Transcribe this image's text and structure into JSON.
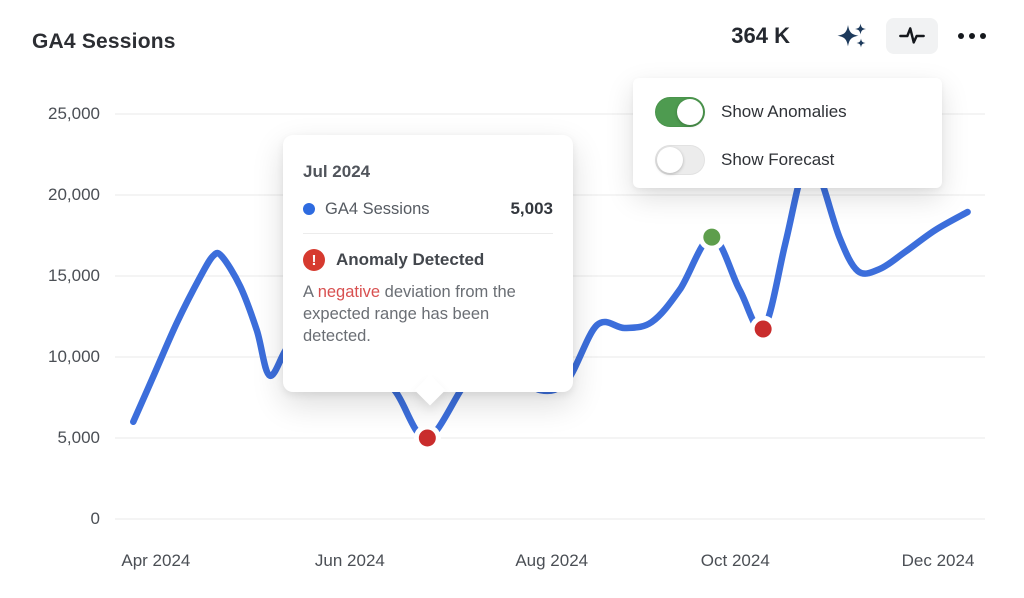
{
  "header": {
    "title": "GA4 Sessions",
    "total_value": "364 K",
    "icons": [
      "sparkles-icon",
      "pulse-icon",
      "ellipsis-icon"
    ],
    "active_tool": "pulse-icon",
    "sparkles_color": "#1d3a5c",
    "icon_color": "#15181d"
  },
  "overlay_menu": {
    "items": [
      {
        "label": "Show Anomalies",
        "enabled": true
      },
      {
        "label": "Show Forecast",
        "enabled": false
      }
    ],
    "toggle_on_color": "#4e9b50",
    "toggle_off_color": "#ececec"
  },
  "tooltip": {
    "title": "Jul 2024",
    "series_label": "GA4 Sessions",
    "value": "5,003",
    "marker_color": "#2e6be0",
    "alert_glyph": "!",
    "alert_icon_color": "#d63a2f",
    "alert_title": "Anomaly Detected",
    "description_prefix": "A ",
    "description_highlight": "negative",
    "description_suffix": " deviation from the expected range has been detected.",
    "highlight_color": "#d85050"
  },
  "chart_data": {
    "type": "line",
    "title": "GA4 Sessions",
    "grid": true,
    "legend_position": "none",
    "ylim": [
      0,
      25000
    ],
    "y_ticks": [
      0,
      5000,
      10000,
      15000,
      20000,
      25000
    ],
    "y_tick_labels": [
      "0",
      "5,000",
      "10,000",
      "15,000",
      "20,000",
      "25,000"
    ],
    "x_ticks": [
      {
        "label": "Apr 2024",
        "f": 0.047
      },
      {
        "label": "Jun 2024",
        "f": 0.27
      },
      {
        "label": "Aug 2024",
        "f": 0.502
      },
      {
        "label": "Oct 2024",
        "f": 0.713
      },
      {
        "label": "Dec 2024",
        "f": 0.946
      }
    ],
    "gridline_color": "#eaeaea",
    "series": [
      {
        "name": "GA4 Sessions",
        "color": "#3c6edb",
        "points": [
          [
            0.021,
            6000
          ],
          [
            0.044,
            8800
          ],
          [
            0.071,
            12100
          ],
          [
            0.098,
            14950
          ],
          [
            0.113,
            16250
          ],
          [
            0.123,
            16200
          ],
          [
            0.144,
            14350
          ],
          [
            0.163,
            11650
          ],
          [
            0.178,
            8850
          ],
          [
            0.201,
            10750
          ],
          [
            0.236,
            11500
          ],
          [
            0.282,
            10300
          ],
          [
            0.322,
            7900
          ],
          [
            0.359,
            5003
          ],
          [
            0.408,
            8700
          ],
          [
            0.448,
            9300
          ],
          [
            0.489,
            7950
          ],
          [
            0.52,
            8580
          ],
          [
            0.554,
            11970
          ],
          [
            0.586,
            11790
          ],
          [
            0.617,
            12160
          ],
          [
            0.649,
            14140
          ],
          [
            0.686,
            17400
          ],
          [
            0.718,
            14140
          ],
          [
            0.745,
            11730
          ],
          [
            0.77,
            16900
          ],
          [
            0.787,
            20900
          ],
          [
            0.799,
            22300
          ],
          [
            0.813,
            20700
          ],
          [
            0.833,
            17350
          ],
          [
            0.854,
            15300
          ],
          [
            0.879,
            15430
          ],
          [
            0.908,
            16480
          ],
          [
            0.943,
            17840
          ],
          [
            0.98,
            18950
          ]
        ]
      }
    ],
    "anomalies": [
      {
        "f": 0.359,
        "v": 5003,
        "type": "negative",
        "month": "Jul 2024"
      },
      {
        "f": 0.686,
        "v": 17400,
        "type": "positive"
      },
      {
        "f": 0.745,
        "v": 11730,
        "type": "negative"
      }
    ],
    "anomaly_colors": {
      "negative": "#c92c2c",
      "positive": "#5e9e4c"
    }
  }
}
